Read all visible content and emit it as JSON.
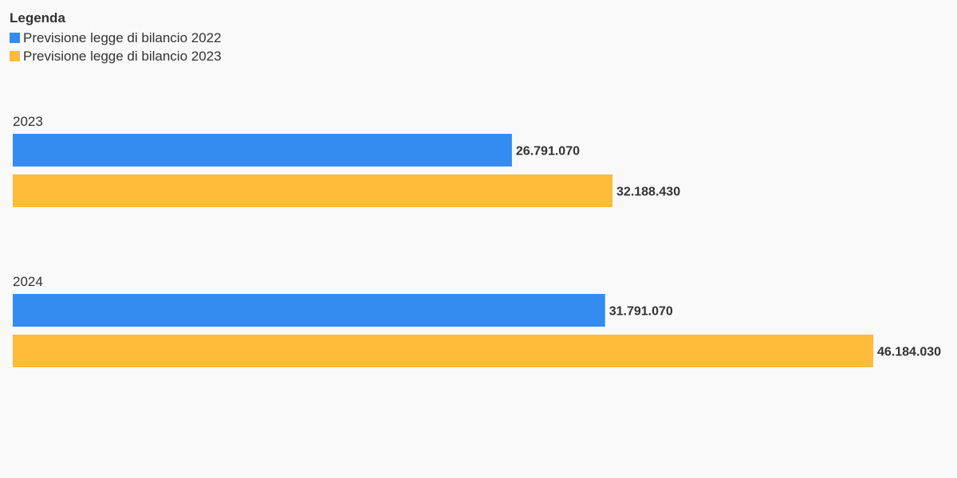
{
  "legend": {
    "title": "Legenda"
  },
  "colors": {
    "series_0": "#348cf0",
    "series_1": "#ffbb3a"
  },
  "chart_data": {
    "type": "bar",
    "orientation": "horizontal",
    "categories": [
      "2023",
      "2024"
    ],
    "series": [
      {
        "name": "Previsione legge di bilancio 2022",
        "values": [
          26791070,
          31791070
        ],
        "labels": [
          "26.791.070",
          "31.791.070"
        ]
      },
      {
        "name": "Previsione legge di bilancio 2023",
        "values": [
          32188430,
          46184030
        ],
        "labels": [
          "32.188.430",
          "46.184.030"
        ]
      }
    ],
    "title": "",
    "xlabel": "",
    "ylabel": "",
    "xlim": [
      0,
      46184030
    ],
    "grid": false,
    "legend_position": "top-left"
  }
}
